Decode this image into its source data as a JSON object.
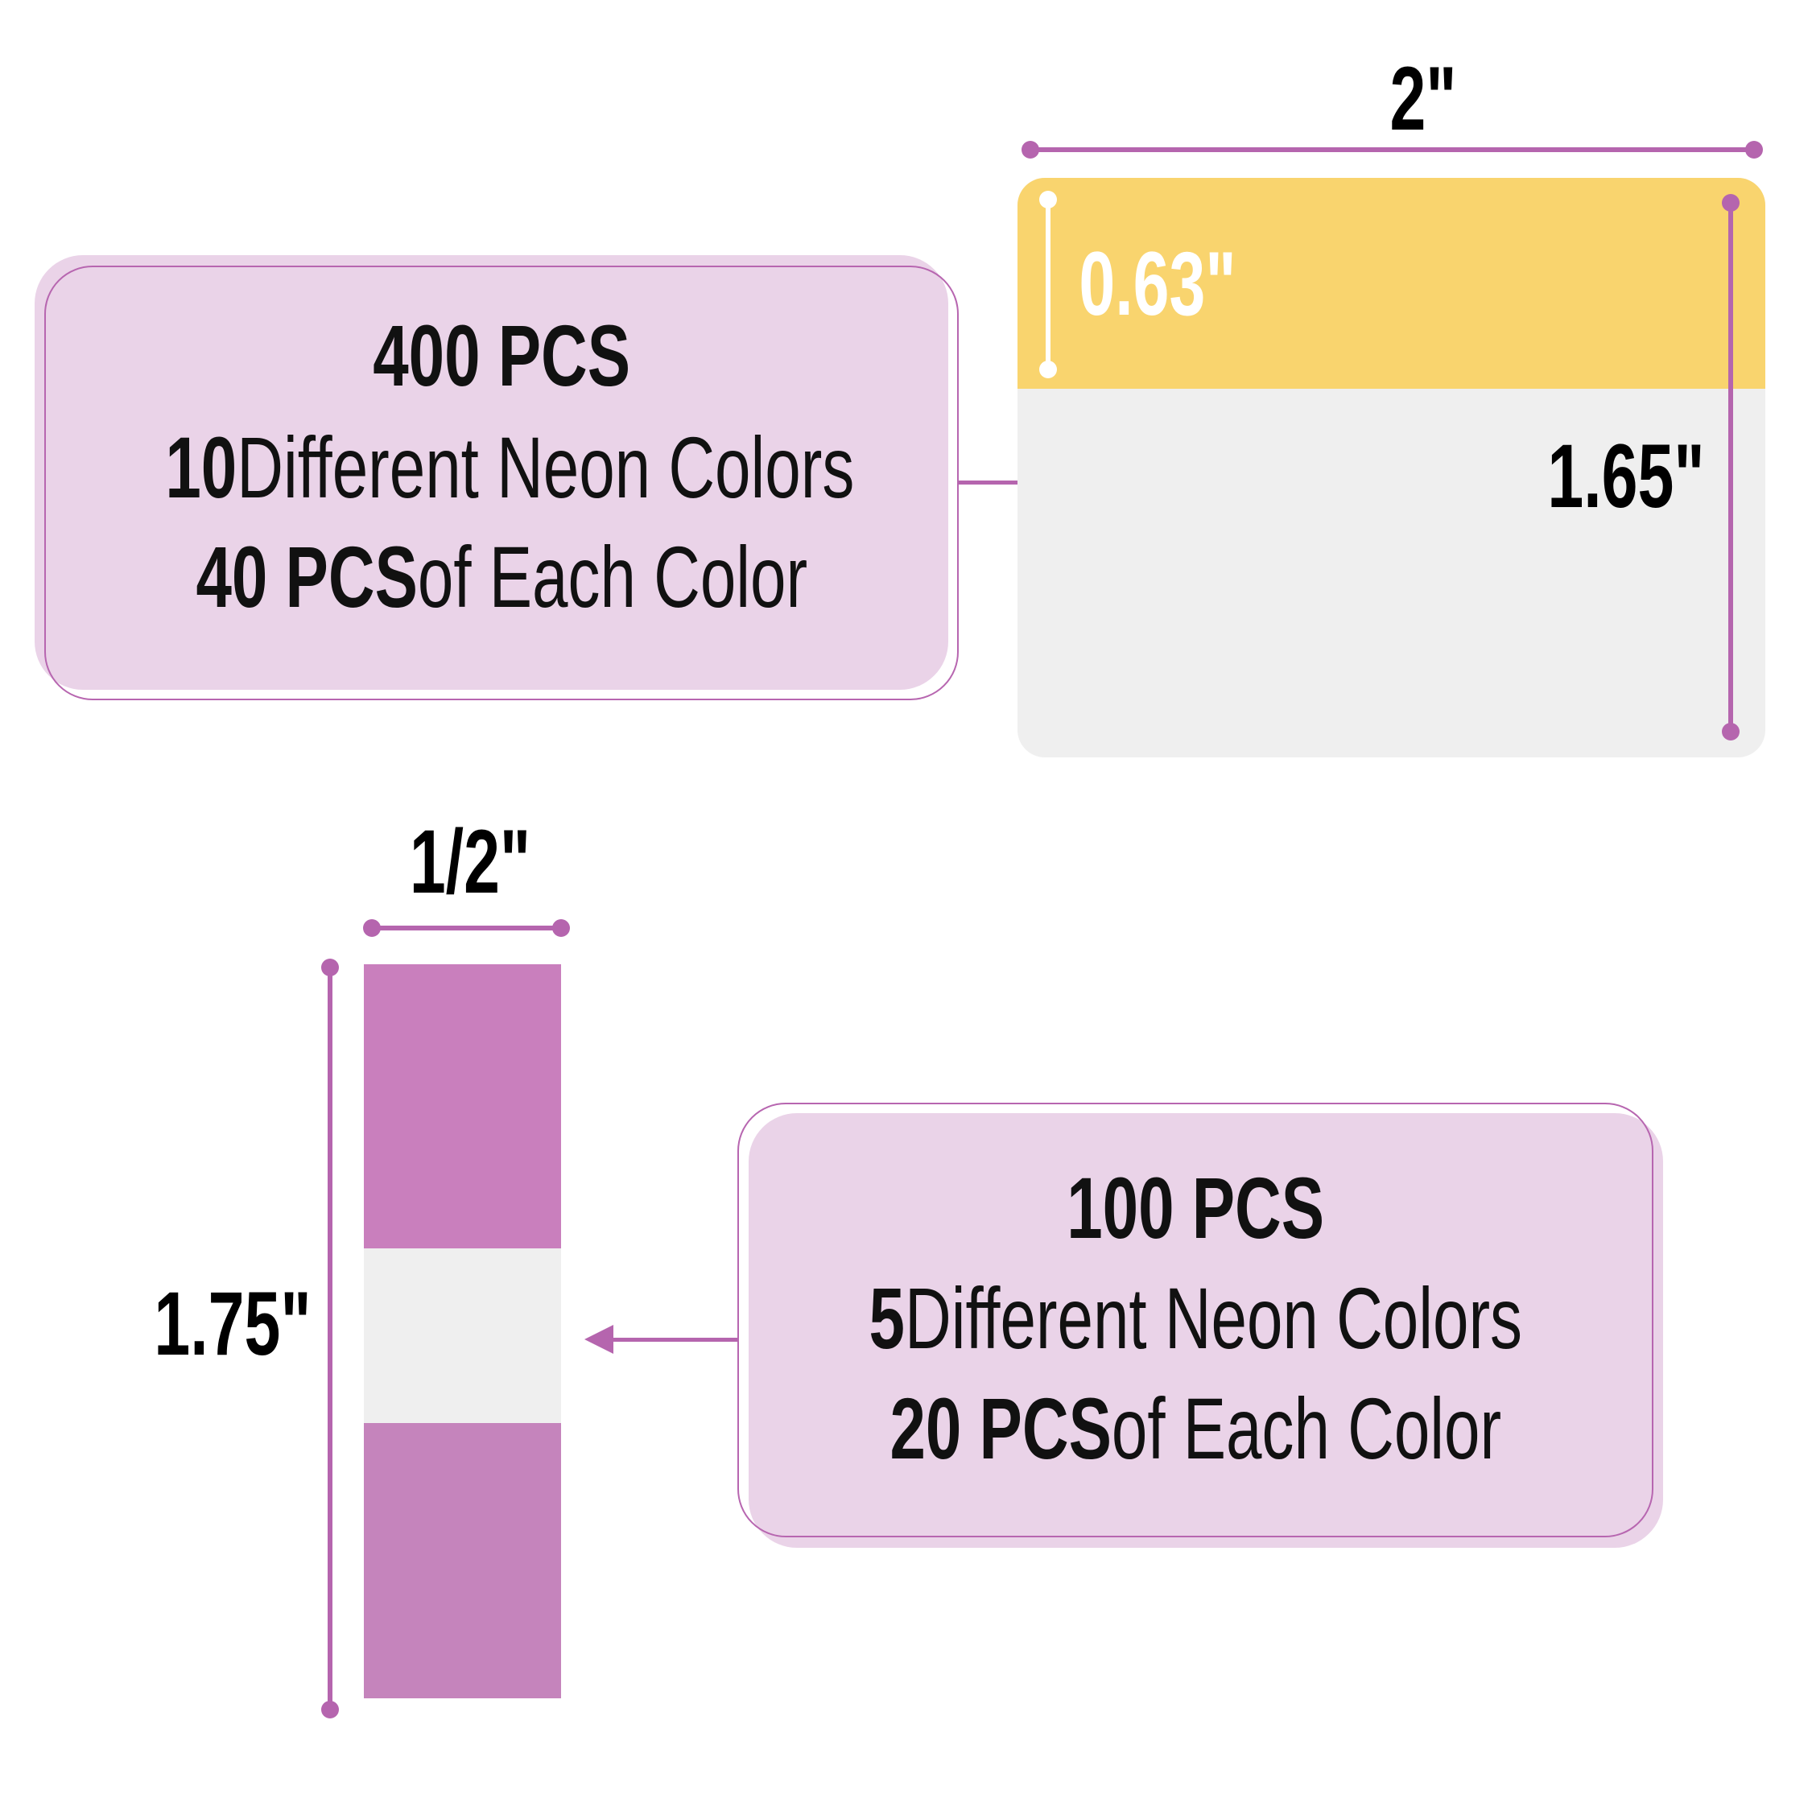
{
  "top_box": {
    "line1": "400 PCS",
    "line2_bold": "10",
    "line2_rest": " Different Neon Colors",
    "line3_bold": "40 PCS",
    "line3_rest": " of Each Color"
  },
  "bottom_box": {
    "line1": "100 PCS",
    "line2_bold": "5",
    "line2_rest": " Different Neon Colors",
    "line3_bold": "20 PCS",
    "line3_rest": " of Each Color"
  },
  "large_note": {
    "width_label": "2\"",
    "tab_height_label": "0.63\"",
    "height_label": "1.65\""
  },
  "small_flag": {
    "width_label": "1/2\"",
    "height_label": "1.75\""
  },
  "colors": {
    "accent": "#b565ae",
    "box_fill": "#ead3e8",
    "yellow": "#f9d46e",
    "pink": "#c97fbd",
    "clear": "#efefef"
  }
}
